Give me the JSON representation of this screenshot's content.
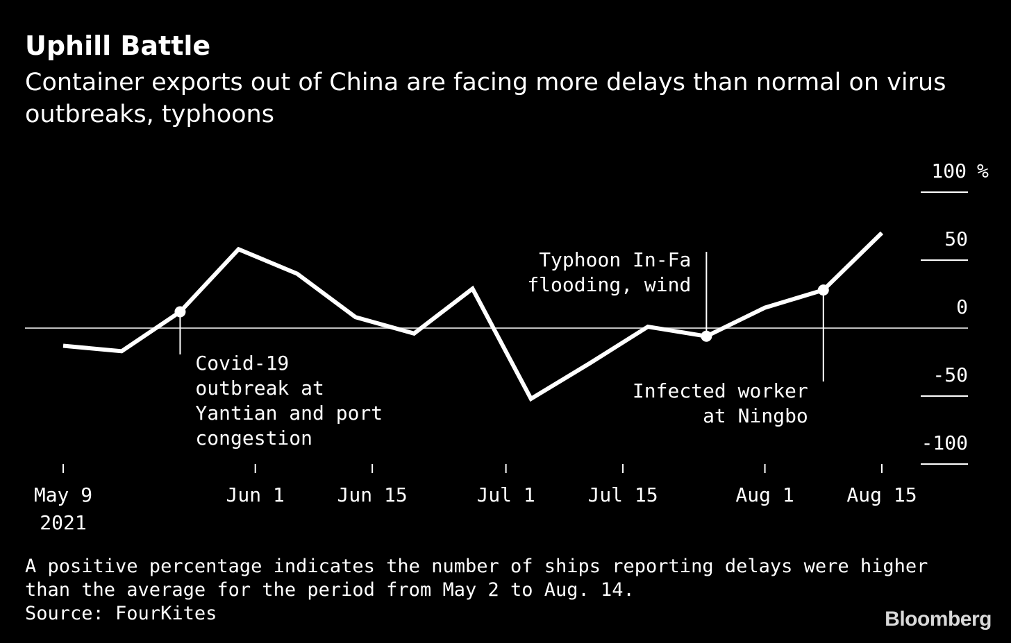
{
  "title": "Uphill Battle",
  "subtitle": "Container exports out of China are facing more delays than normal on virus outbreaks, typhoons",
  "footnote": {
    "line1": "A positive percentage indicates the number of ships reporting delays were higher",
    "line2": "than the average for the period from May 2 to Aug. 14.",
    "source": "Source: FourKites"
  },
  "logo": "Bloomberg",
  "colors": {
    "background": "#000000",
    "line": "#ffffff",
    "zero_line": "#bfbfbf"
  },
  "chart_data": {
    "type": "line",
    "title": "Uphill Battle",
    "subtitle": "Container exports out of China are facing more delays than normal on virus outbreaks, typhoons",
    "x": [
      "2021-05-09",
      "2021-05-16",
      "2021-05-23",
      "2021-05-30",
      "2021-06-06",
      "2021-06-13",
      "2021-06-20",
      "2021-06-27",
      "2021-07-04",
      "2021-07-11",
      "2021-07-18",
      "2021-07-25",
      "2021-08-01",
      "2021-08-08",
      "2021-08-15"
    ],
    "series": [
      {
        "values": [
          -13,
          -17,
          12,
          58,
          40,
          8,
          -4,
          29,
          -52,
          -26,
          1,
          -6,
          15,
          28,
          70
        ]
      }
    ],
    "ylim": [
      -100,
      100
    ],
    "y_unit": "%",
    "y_ticks": [
      100,
      50,
      0,
      -50,
      -100
    ],
    "y_tick_labels": [
      "100 %",
      "50",
      "0",
      "-50",
      "-100"
    ],
    "x_ticks": [
      {
        "date": "2021-05-09",
        "label": "May 9",
        "sublabel": "2021"
      },
      {
        "date": "2021-06-01",
        "label": "Jun 1"
      },
      {
        "date": "2021-06-15",
        "label": "Jun 15"
      },
      {
        "date": "2021-07-01",
        "label": "Jul 1"
      },
      {
        "date": "2021-07-15",
        "label": "Jul 15"
      },
      {
        "date": "2021-08-01",
        "label": "Aug 1"
      },
      {
        "date": "2021-08-15",
        "label": "Aug 15"
      }
    ],
    "annotations": [
      {
        "date": "2021-05-23",
        "value": 12,
        "direction": "below",
        "align": "left",
        "lines": [
          "Covid-19",
          "outbreak at",
          "Yantian and port",
          "congestion"
        ]
      },
      {
        "date": "2021-07-25",
        "value": -6,
        "direction": "above",
        "align": "right",
        "lines": [
          "Typhoon In-Fa",
          "flooding, wind"
        ]
      },
      {
        "date": "2021-08-08",
        "value": 28,
        "direction": "below",
        "align": "right",
        "lines": [
          "Infected worker",
          "at Ningbo"
        ]
      }
    ],
    "zero_line": true,
    "grid": false
  }
}
